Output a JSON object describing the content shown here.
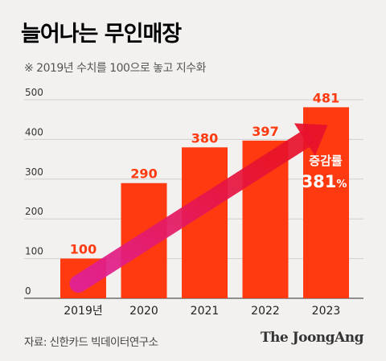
{
  "header": {
    "title": "늘어나는 무인매장",
    "subtitle": "※ 2019년 수치를 100으로 놓고 지수화"
  },
  "footer": {
    "source": "자료: 신한카드 빅데이터연구소",
    "brand": "The JoongAng"
  },
  "colors": {
    "bar": "#ff3a10",
    "arrow_start": "#e0209a",
    "arrow_end": "#e8122c",
    "grid": "#cfcfcf",
    "value_label": "#ff3a10",
    "annotation": "#ffffff"
  },
  "annotation": {
    "line1": "증감률",
    "line2": "381",
    "unit": "%"
  },
  "chart_data": {
    "type": "bar",
    "categories": [
      "2019년",
      "2020",
      "2021",
      "2022",
      "2023"
    ],
    "values": [
      100,
      290,
      380,
      397,
      481
    ],
    "ylim": [
      0,
      500
    ],
    "yticks": [
      "0",
      "100",
      "200",
      "300",
      "400",
      "500"
    ],
    "grid": true,
    "overlay": "rising arrow from first to last bar"
  }
}
